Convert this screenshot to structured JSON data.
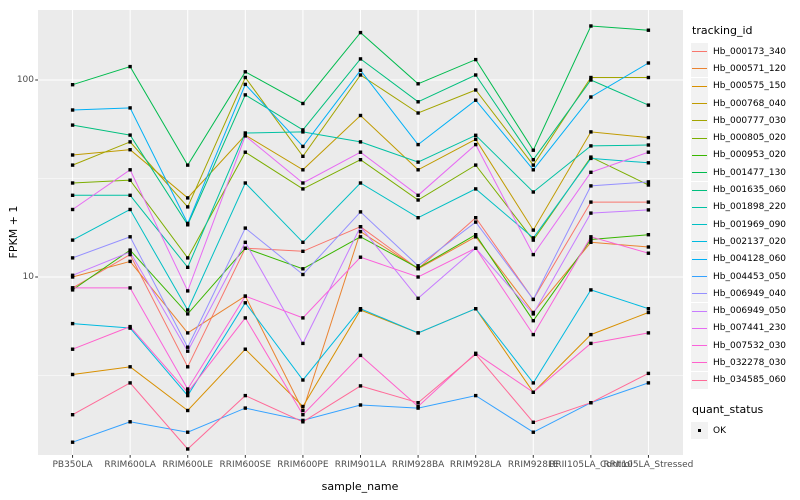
{
  "figure": {
    "y_axis_title": "FPKM + 1",
    "x_axis_title": "sample_name",
    "y_tick_labels": [
      "100",
      "10"
    ],
    "panel_color": "#EBEBEB",
    "grid_color": "#FFFFFF",
    "tick_color": "#333333",
    "tick_label_color": "#4D4D4D",
    "point_color": "#000000"
  },
  "legend": {
    "tracking_title": "tracking_id",
    "quant_title": "quant_status",
    "quant_items": [
      {
        "label": "OK",
        "symbol": "black-square"
      }
    ],
    "key_background": "#F2F2F2"
  },
  "chart_data": {
    "type": "line",
    "x_label": "sample_name",
    "y_label": "FPKM + 1",
    "y_scale": "log10",
    "y_major_ticks": [
      10,
      100
    ],
    "y_minor_gridlines": [
      3.162,
      31.62
    ],
    "ylim": [
      1.3,
      230
    ],
    "legend_position": "right",
    "point_shape": "filled-square",
    "categories": [
      "PB350LA",
      "RRIM600LA",
      "RRIM600LE",
      "RRIM600SE",
      "RRIM600PE",
      "RRIM901LA",
      "RRIM928BA",
      "RRIM928LA",
      "RRIM928LE",
      "RRII105LA_Control",
      "RRII105LA_Stressed"
    ],
    "series": [
      {
        "name": "Hb_000173_340",
        "color": "#F8766D",
        "values": [
          8.8,
          13,
          3.5,
          14,
          13.5,
          18,
          11,
          20,
          7.7,
          24,
          24
        ]
      },
      {
        "name": "Hb_000571_120",
        "color": "#EA8331",
        "values": [
          10,
          12,
          5.2,
          8,
          2.1,
          17,
          11,
          16,
          6.6,
          15,
          14.2
        ]
      },
      {
        "name": "Hb_000575_150",
        "color": "#D89000",
        "values": [
          3.2,
          3.5,
          2.1,
          4.3,
          2.2,
          6.8,
          5.2,
          6.9,
          2.6,
          5.1,
          6.6
        ]
      },
      {
        "name": "Hb_000768_040",
        "color": "#C09B00",
        "values": [
          41.6,
          44.3,
          25.2,
          52.5,
          35,
          66,
          35,
          50,
          17.3,
          54.5,
          51
        ]
      },
      {
        "name": "Hb_000777_030",
        "color": "#A3A500",
        "values": [
          37,
          48.5,
          22.7,
          103,
          41,
          106,
          68,
          89,
          37,
          103,
          103
        ]
      },
      {
        "name": "Hb_000805_020",
        "color": "#7CAE00",
        "values": [
          30,
          31,
          12.5,
          43,
          28,
          39.4,
          24.6,
          37,
          15.4,
          40.6,
          29.3
        ]
      },
      {
        "name": "Hb_000953_020",
        "color": "#39B600",
        "values": [
          8.6,
          13.7,
          6.5,
          14,
          11,
          16,
          11.1,
          16.4,
          6,
          15.5,
          16.4
        ]
      },
      {
        "name": "Hb_001477_130",
        "color": "#00BB4E",
        "values": [
          94.6,
          117,
          37,
          110,
          76,
          174,
          95.7,
          127,
          44,
          188,
          179
        ]
      },
      {
        "name": "Hb_001635_060",
        "color": "#00BF7D",
        "values": [
          59,
          52.5,
          18.4,
          84,
          55.8,
          128,
          77.5,
          106,
          39.4,
          100,
          74.6
        ]
      },
      {
        "name": "Hb_001898_220",
        "color": "#00C1A3",
        "values": [
          26,
          26,
          11.2,
          53.8,
          54.5,
          48.5,
          38.3,
          52.4,
          27,
          46.3,
          46.8
        ]
      },
      {
        "name": "Hb_001969_090",
        "color": "#00BFC4",
        "values": [
          15.4,
          22,
          6.8,
          30,
          15,
          30,
          20,
          28,
          15.8,
          40,
          38
        ]
      },
      {
        "name": "Hb_002137_020",
        "color": "#00BAE0",
        "values": [
          5.8,
          5.5,
          2.5,
          7.4,
          3,
          6.9,
          5.2,
          6.9,
          2.9,
          8.6,
          6.9
        ]
      },
      {
        "name": "Hb_004128_060",
        "color": "#00B0F6",
        "values": [
          70.4,
          72.2,
          18.7,
          95,
          46,
          112,
          47,
          79,
          35,
          82,
          122
        ]
      },
      {
        "name": "Hb_004453_050",
        "color": "#35A2FF",
        "values": [
          1.45,
          1.84,
          1.63,
          2.16,
          1.87,
          2.24,
          2.16,
          2.5,
          1.63,
          2.3,
          2.9
        ]
      },
      {
        "name": "Hb_006949_040",
        "color": "#9590FF",
        "values": [
          12.5,
          16,
          4.4,
          17.7,
          10.3,
          21.4,
          11.4,
          19,
          7.7,
          29,
          30.4
        ]
      },
      {
        "name": "Hb_006949_050",
        "color": "#C77CFF",
        "values": [
          10.2,
          13.4,
          4.2,
          15,
          4.6,
          18,
          7.8,
          14,
          6.5,
          21.1,
          21.9
        ]
      },
      {
        "name": "Hb_007441_230",
        "color": "#E76BF3",
        "values": [
          22,
          35,
          8.5,
          52,
          30,
          43,
          26,
          47,
          13,
          34,
          43
        ]
      },
      {
        "name": "Hb_007532_030",
        "color": "#FA62DB",
        "values": [
          8.8,
          8.8,
          2.7,
          8,
          6.2,
          12.6,
          10,
          14,
          5.1,
          16,
          13.2
        ]
      },
      {
        "name": "Hb_032278_030",
        "color": "#FF61CC",
        "values": [
          4.3,
          5.6,
          2.6,
          6.2,
          2,
          4,
          2.2,
          4.1,
          2.6,
          4.6,
          5.2
        ]
      },
      {
        "name": "Hb_034585_060",
        "color": "#FF6A98",
        "values": [
          2,
          2.9,
          1.34,
          2.5,
          1.84,
          2.8,
          2.3,
          4.05,
          1.83,
          2.3,
          3.24
        ]
      }
    ]
  }
}
